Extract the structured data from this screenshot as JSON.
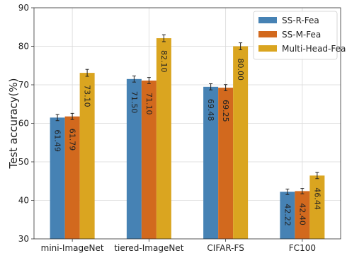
{
  "chart_data": {
    "type": "bar",
    "title": "",
    "xlabel": "",
    "ylabel": "Test accuracy(%)",
    "ylim": [
      30,
      90
    ],
    "yticks": [
      30,
      40,
      50,
      60,
      70,
      80,
      90
    ],
    "grid": true,
    "legend_position": "top-right",
    "categories": [
      "mini-ImageNet",
      "tiered-ImageNet",
      "CIFAR-FS",
      "FC100"
    ],
    "series": [
      {
        "name": "SS-R-Fea",
        "color": "#4682b4",
        "values": [
          61.49,
          71.5,
          69.48,
          42.22
        ],
        "labels": [
          "61.49",
          "71.50",
          "69.48",
          "42.22"
        ],
        "errors": [
          0.8,
          0.8,
          0.8,
          0.7
        ]
      },
      {
        "name": "SS-M-Fea",
        "color": "#d2691e",
        "values": [
          61.79,
          71.1,
          69.25,
          42.4
        ],
        "labels": [
          "61.79",
          "71.10",
          "69.25",
          "42.40"
        ],
        "errors": [
          0.8,
          0.8,
          0.8,
          0.7
        ]
      },
      {
        "name": "Multi-Head-Fea",
        "color": "#daa520",
        "values": [
          73.1,
          82.1,
          80.0,
          46.44
        ],
        "labels": [
          "73.10",
          "82.10",
          "80.00",
          "46.44"
        ],
        "errors": [
          0.9,
          0.9,
          0.9,
          0.8
        ]
      }
    ]
  }
}
